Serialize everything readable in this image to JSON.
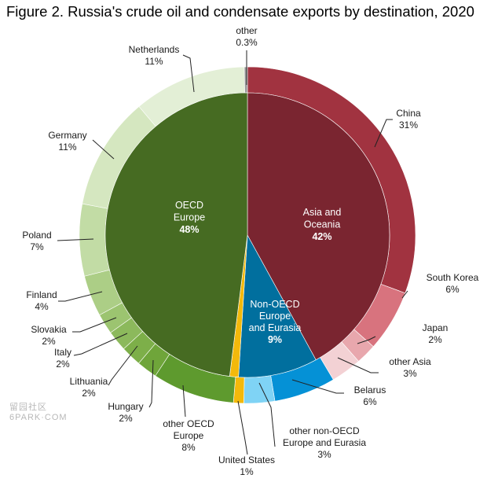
{
  "chart_data": {
    "type": "pie",
    "title": "Figure 2. Russia's crude oil and condensate exports by destination, 2020",
    "rings": [
      {
        "level": "inner",
        "slices": [
          {
            "name": "Asia and Oceania",
            "value": 42,
            "label": "42%",
            "color": "#7a2530"
          },
          {
            "name": "Non-OECD Europe and Eurasia",
            "value": 9,
            "label": "9%",
            "color": "#016f9e"
          },
          {
            "name": "United States",
            "value": 1,
            "label": "",
            "color": "#f3b90b"
          },
          {
            "name": "OECD Europe",
            "value": 48,
            "label": "48%",
            "color": "#466b22"
          }
        ]
      },
      {
        "level": "outer",
        "slices": [
          {
            "name": "China",
            "value": 31,
            "label": "31%",
            "color": "#a13340"
          },
          {
            "name": "South Korea",
            "value": 6,
            "label": "6%",
            "color": "#d8737e"
          },
          {
            "name": "Japan",
            "value": 2,
            "label": "2%",
            "color": "#e8a7ad"
          },
          {
            "name": "other Asia",
            "value": 3,
            "label": "3%",
            "color": "#f3d1d4"
          },
          {
            "name": "Belarus",
            "value": 6,
            "label": "6%",
            "color": "#0591d6"
          },
          {
            "name": "other non-OECD Europe and Eurasia",
            "value": 3,
            "label": "3%",
            "color": "#7fd3f5"
          },
          {
            "name": "United States",
            "value": 1,
            "label": "1%",
            "color": "#f3b90b"
          },
          {
            "name": "other OECD Europe",
            "value": 8,
            "label": "8%",
            "color": "#5e9a2e"
          },
          {
            "name": "Hungary",
            "value": 2,
            "label": "2%",
            "color": "#6fa53a"
          },
          {
            "name": "Lithuania",
            "value": 2,
            "label": "2%",
            "color": "#7daf49"
          },
          {
            "name": "Italy",
            "value": 2,
            "label": "2%",
            "color": "#8cb95c"
          },
          {
            "name": "Slovakia",
            "value": 2,
            "label": "2%",
            "color": "#9cc470"
          },
          {
            "name": "Finland",
            "value": 4,
            "label": "4%",
            "color": "#acce86"
          },
          {
            "name": "Poland",
            "value": 7,
            "label": "7%",
            "color": "#c2dca5"
          },
          {
            "name": "Germany",
            "value": 11,
            "label": "11%",
            "color": "#d5e7c0"
          },
          {
            "name": "Netherlands",
            "value": 11,
            "label": "11%",
            "color": "#e3efd6"
          },
          {
            "name": "other",
            "value": 0.3,
            "label": "0.3%",
            "color": "#9a9a9a"
          }
        ]
      }
    ]
  },
  "inner_labels": {
    "asia": [
      "Asia and",
      "Oceania",
      "42%"
    ],
    "oecd": [
      "OECD",
      "Europe",
      "48%"
    ],
    "nonoecd": [
      "Non-OECD",
      "Europe",
      "and Eurasia",
      "9%"
    ]
  },
  "outer_labels": {
    "china": [
      "China",
      "31%"
    ],
    "south_korea": [
      "South Korea",
      "6%"
    ],
    "japan": [
      "Japan",
      "2%"
    ],
    "other_asia": [
      "other Asia",
      "3%"
    ],
    "belarus": [
      "Belarus",
      "6%"
    ],
    "other_non_oecd": [
      "other non-OECD",
      "Europe and Eurasia",
      "3%"
    ],
    "united_states": [
      "United States",
      "1%"
    ],
    "other_oecd": [
      "other OECD",
      "Europe",
      "8%"
    ],
    "hungary": [
      "Hungary",
      "2%"
    ],
    "lithuania": [
      "Lithuania",
      "2%"
    ],
    "italy": [
      "Italy",
      "2%"
    ],
    "slovakia": [
      "Slovakia",
      "2%"
    ],
    "finland": [
      "Finland",
      "4%"
    ],
    "poland": [
      "Poland",
      "7%"
    ],
    "germany": [
      "Germany",
      "11%"
    ],
    "netherlands": [
      "Netherlands",
      "11%"
    ],
    "other": [
      "other",
      "0.3%"
    ]
  },
  "watermark": {
    "line1": "留园社区",
    "line2": "6PARK·COM"
  }
}
